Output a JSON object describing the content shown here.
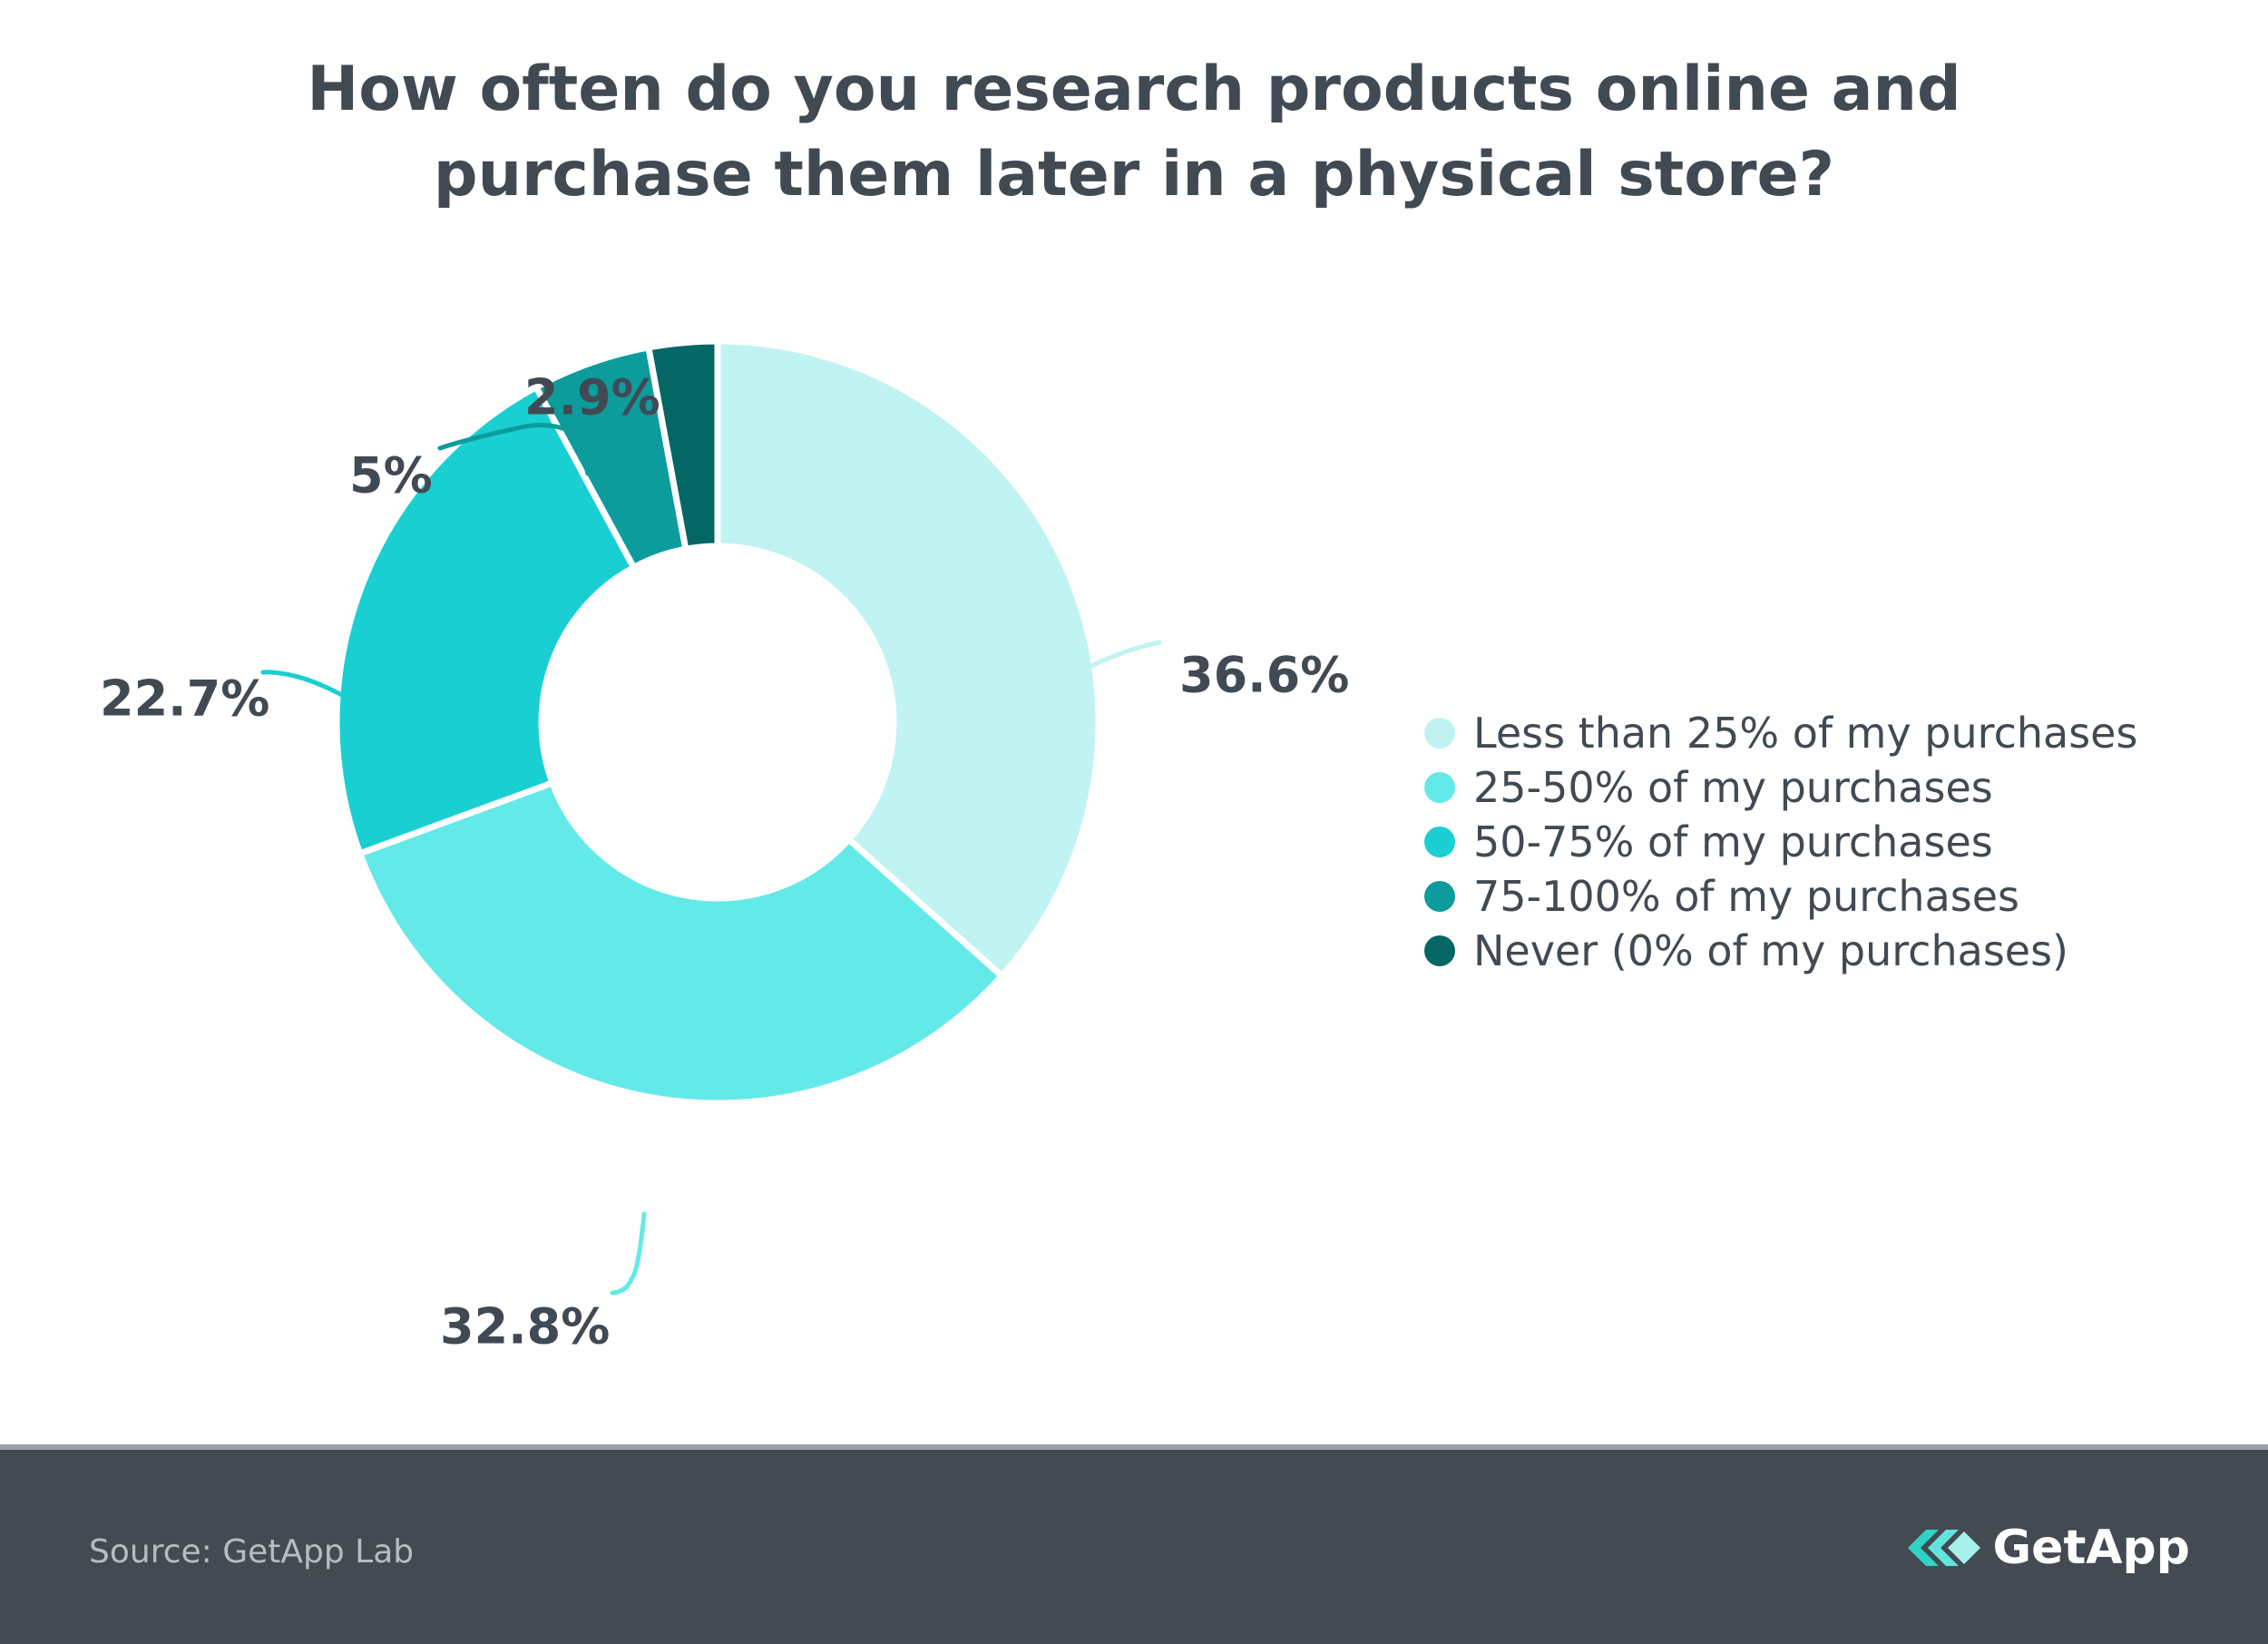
{
  "title": {
    "line1": "How often do you research products online and",
    "line2": "purchase them later in a physical store?"
  },
  "chart_data": {
    "type": "pie",
    "variant": "donut",
    "categories": [
      "Less than 25% of my purchases",
      "25-50% of my purchases",
      "50-75% of my purchases",
      "75-100% of my purchases",
      "Never (0% of my purchases)"
    ],
    "values": [
      36.6,
      32.8,
      22.7,
      5,
      2.9
    ],
    "labels": [
      "36.6%",
      "32.8%",
      "22.7%",
      "5%",
      "2.9%"
    ],
    "colors": [
      "#c0f3f2",
      "#64e9e9",
      "#19cfd1",
      "#0c9c9c",
      "#046766"
    ],
    "legend_position": "right"
  },
  "footer": {
    "source": "Source: GetApp Lab",
    "brand": "GetApp",
    "brand_icon": "getapp-logo-icon"
  }
}
